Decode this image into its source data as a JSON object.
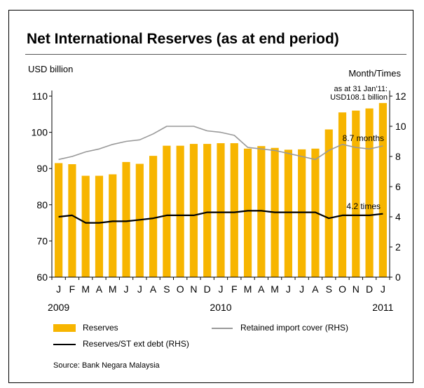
{
  "title": "Net International Reserves (as at end period)",
  "colors": {
    "bars": "#F7B500",
    "cover_line": "#999999",
    "debt_line": "#000000"
  },
  "chart_data": {
    "type": "bar",
    "ylabel_left": "USD billion",
    "ylabel_right": "Month/Times",
    "ylim_left": [
      60,
      110
    ],
    "yticks_left": [
      "60",
      "70",
      "80",
      "90",
      "100",
      "110"
    ],
    "ylim_right": [
      0,
      12
    ],
    "yticks_right": [
      "0",
      "2",
      "4",
      "6",
      "8",
      "10",
      "12"
    ],
    "categories": [
      "J",
      "F",
      "M",
      "A",
      "M",
      "J",
      "J",
      "A",
      "S",
      "O",
      "N",
      "D",
      "J",
      "F",
      "M",
      "A",
      "M",
      "J",
      "J",
      "A",
      "S",
      "O",
      "N",
      "D",
      "J"
    ],
    "years": [
      "2009",
      "2010",
      "2011"
    ],
    "series": [
      {
        "name": "Reserves",
        "axis": "left",
        "type": "bar",
        "values": [
          91.5,
          91.2,
          88.0,
          88.0,
          88.4,
          91.8,
          91.3,
          93.5,
          96.3,
          96.3,
          96.8,
          96.8,
          97.0,
          97.0,
          95.5,
          96.2,
          95.7,
          95.2,
          95.3,
          95.5,
          100.8,
          105.5,
          106.0,
          106.6,
          108.1
        ]
      },
      {
        "name": "Retained import cover (RHS)",
        "axis": "right",
        "type": "line",
        "values": [
          7.8,
          8.0,
          8.3,
          8.5,
          8.8,
          9.0,
          9.1,
          9.5,
          10.0,
          10.0,
          10.0,
          9.7,
          9.6,
          9.4,
          8.6,
          8.5,
          8.4,
          8.2,
          8.0,
          7.8,
          8.4,
          8.8,
          8.6,
          8.5,
          8.7
        ]
      },
      {
        "name": "Reserves/ST ext debt (RHS)",
        "axis": "right",
        "type": "line",
        "values": [
          4.0,
          4.1,
          3.6,
          3.6,
          3.7,
          3.7,
          3.8,
          3.9,
          4.1,
          4.1,
          4.1,
          4.3,
          4.3,
          4.3,
          4.4,
          4.4,
          4.3,
          4.3,
          4.3,
          4.3,
          3.9,
          4.1,
          4.1,
          4.1,
          4.2
        ]
      }
    ],
    "annotations": {
      "reserve_note": [
        "as at 31 Jan'11:",
        "USD108.1 billion"
      ],
      "cover_label": "8.7 months",
      "debt_label": "4.2 times"
    }
  },
  "legend": {
    "reserves": "Reserves",
    "import_cover": "Retained import cover (RHS)",
    "debt_ratio": "Reserves/ST ext debt (RHS)"
  },
  "source": "Source: Bank Negara Malaysia"
}
